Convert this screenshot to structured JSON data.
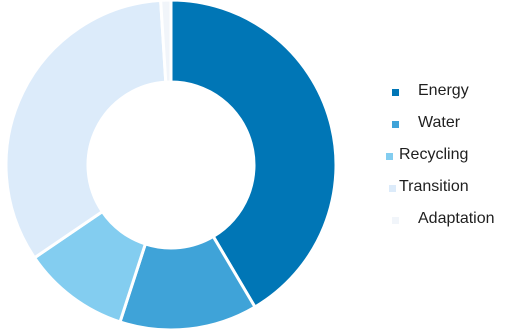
{
  "chart_data": {
    "type": "pie",
    "donut": true,
    "categories": [
      "Energy",
      "Water",
      "Recycling",
      "Transition",
      "Adaptation"
    ],
    "values": [
      41.5,
      13.5,
      10.5,
      33.5,
      1.0
    ],
    "colors": [
      "#0076b6",
      "#3fa3d8",
      "#83cdf0",
      "#dcebfa",
      "#f1f5fa"
    ],
    "legend_position": "right"
  }
}
